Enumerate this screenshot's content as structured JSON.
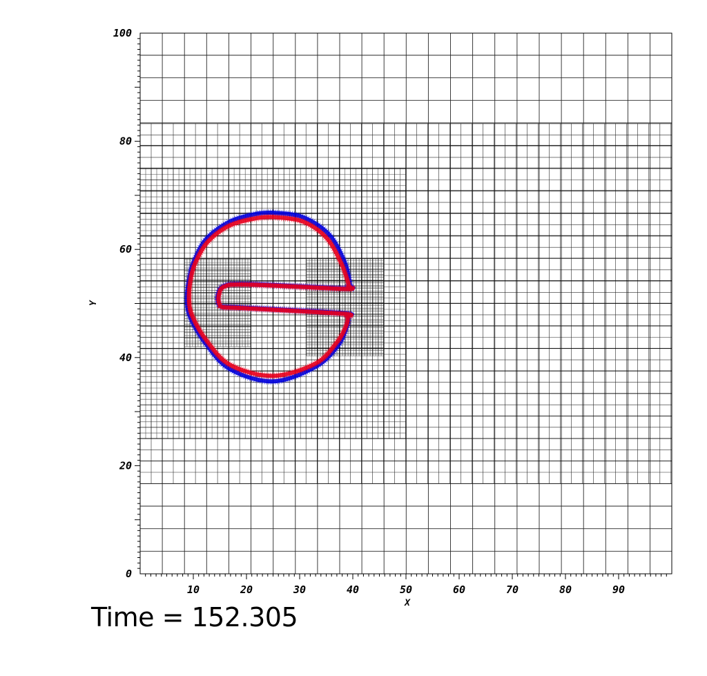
{
  "chart_data": {
    "type": "line",
    "xlabel": "X",
    "ylabel": "Y",
    "xlim": [
      0,
      100
    ],
    "ylim": [
      0,
      100
    ],
    "x_ticks": [
      10,
      20,
      30,
      40,
      50,
      60,
      70,
      80,
      90
    ],
    "y_ticks": [
      0,
      20,
      40,
      60,
      80,
      100
    ],
    "grid": {
      "levels": [
        {
          "xmin": 0,
          "xmax": 100,
          "ymin": 0,
          "ymax": 100,
          "spacing": 4.17
        },
        {
          "xmin": 0,
          "xmax": 100,
          "ymin": 16.7,
          "ymax": 83.3,
          "spacing": 2.08
        },
        {
          "xmin": 0,
          "xmax": 50,
          "ymin": 25,
          "ymax": 75,
          "spacing": 1.04
        },
        {
          "xmin": 8.3,
          "xmax": 20.8,
          "ymin": 42,
          "ymax": 58.3,
          "spacing": 0.52
        },
        {
          "xmin": 31.3,
          "xmax": 45.8,
          "ymin": 40.3,
          "ymax": 58.3,
          "spacing": 0.52
        }
      ]
    },
    "series": [
      {
        "color": "#0000dd",
        "x": [
          25,
          30.5,
          35.5,
          38.4,
          39.4,
          39.2,
          38.5,
          20,
          15.7,
          14.6,
          14.8,
          15.6,
          20,
          38.2,
          39.1,
          38.9,
          37.2,
          33,
          25,
          17,
          12.4,
          9.4,
          8.8,
          9.3,
          10.2,
          12.5,
          17,
          22,
          25
        ],
        "y": [
          66.8,
          66,
          62.8,
          57.8,
          54,
          53.3,
          52.8,
          53.6,
          53.2,
          51.5,
          49.8,
          49.4,
          49.2,
          48.2,
          47.6,
          45.8,
          42.2,
          38.3,
          35.6,
          37.8,
          42.5,
          47.5,
          51,
          55,
          58,
          62,
          65.2,
          66.6,
          66.8
        ]
      },
      {
        "color": "#e8001e",
        "x": [
          25,
          30.5,
          35,
          37.8,
          39.1,
          39.1,
          38.4,
          20,
          15.8,
          14.8,
          14.9,
          15.7,
          20,
          38.1,
          39,
          38.7,
          37,
          33,
          25,
          17,
          12.6,
          9.8,
          9.2,
          9.6,
          10.6,
          12.9,
          17,
          22,
          25
        ],
        "y": [
          66,
          65.2,
          62.2,
          57.5,
          53.9,
          53.1,
          52.7,
          53.5,
          53.1,
          51.5,
          49.9,
          49.3,
          49.1,
          48.1,
          47.5,
          45.8,
          42.8,
          38.9,
          36.6,
          38.6,
          43,
          47.7,
          51,
          55,
          58,
          61.6,
          64.5,
          65.8,
          66
        ]
      }
    ]
  },
  "time_label": "Time = 152.305"
}
